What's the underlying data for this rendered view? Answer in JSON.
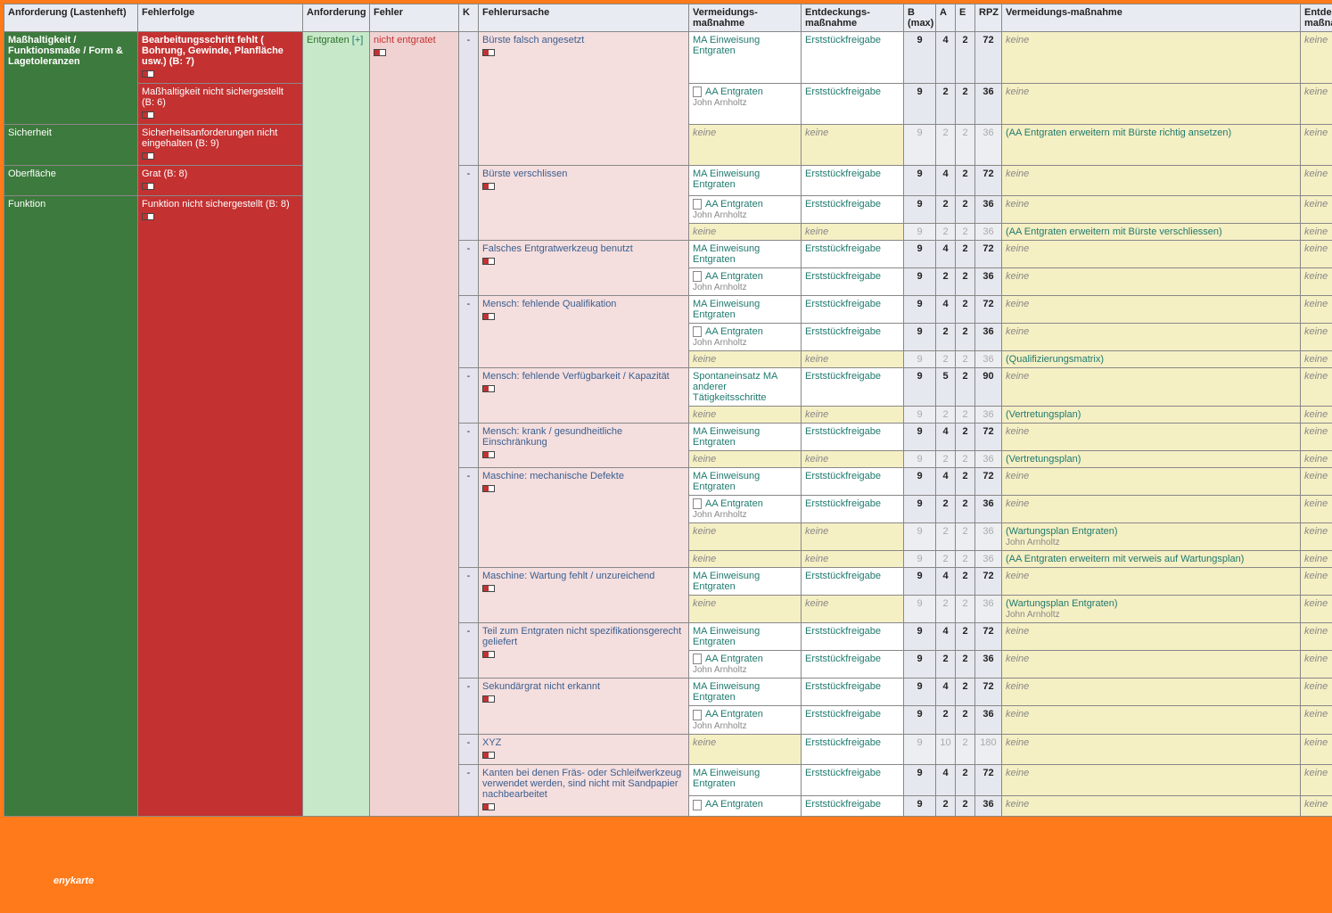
{
  "colors": {
    "frame": "#ff7a1a",
    "green": "#3d7a3d",
    "red": "#c43131",
    "mint": "#c7e9c9",
    "pink": "#f1d2d2",
    "rose": "#f5dede",
    "lav": "#e5e3ee",
    "yel": "#f5efc4",
    "teal": "#1e7a6e",
    "num": "#e6e8ef",
    "header": "#e8ecf2"
  },
  "headers": {
    "anf1": "Anforderung (Lastenheft)",
    "ff": "Fehlerfolge",
    "anf2": "Anforderung",
    "fehler": "Fehler",
    "k": "K",
    "fu": "Fehlerursache",
    "vm": "Vermeidungs-maßnahme",
    "em": "Entdeckungs-maßnahme",
    "b": "B (max)",
    "a": "A",
    "e": "E",
    "rpz": "RPZ",
    "vm2": "Vermeidungs-maßnahme",
    "em2": "Entdeckungs-maßnahme"
  },
  "anf1": [
    "Maßhaltigkeit / Funktionsmaße / Form & Lagetoleranzen",
    "",
    "Sicherheit",
    "Oberfläche",
    "Funktion"
  ],
  "ff": [
    "Bearbeitungsschritt fehlt ( Bohrung, Gewinde, Planfläche usw.) (B: 7)",
    "Maßhaltigkeit nicht sichergestellt (B: 6)",
    "Sicherheitsanforderungen nicht eingehalten (B: 9)",
    "Grat (B: 8)",
    "Funktion nicht sichergestellt (B: 8)"
  ],
  "anf2": {
    "label": "Entgraten",
    "plus": "[+]"
  },
  "fehler": "nicht entgratet",
  "brand": "enykarte",
  "common": {
    "ma": "MA Einweisung Entgraten",
    "aa": "AA Entgraten",
    "john": "John Arnholtz",
    "est": "Erststückfreigabe",
    "keine": "keine",
    "spont": "Spontaneinsatz MA anderer Tätigkeitsschritte"
  },
  "vm2": {
    "r3": "(AA Entgraten erweitern mit Bürste richtig ansetzen)",
    "r6": "(AA Entgraten erweitern mit Bürste verschliessen)",
    "r12": "(Qualifizierungsmatrix)",
    "r14": "(Vertretungsplan)",
    "r16": "(Vertretungsplan)",
    "r19": "(Wartungsplan Entgraten)",
    "r20": "(AA Entgraten erweitern mit verweis auf Wartungsplan)",
    "r22": "(Wartungsplan Entgraten)"
  },
  "causes": {
    "c1": "Bürste falsch angesetzt",
    "c2": "Bürste verschlissen",
    "c3": "Falsches Entgratwerkzeug benutzt",
    "c4": "Mensch: fehlende Qualifikation",
    "c5": "Mensch: fehlende Verfügbarkeit / Kapazität",
    "c6": "Mensch: krank / gesundheitliche Einschränkung",
    "c7": "Maschine: mechanische Defekte",
    "c8": "Maschine: Wartung fehlt / unzureichend",
    "c9": "Teil zum Entgraten nicht spezifikationsgerecht geliefert",
    "c10": "Sekundärgrat nicht erkannt",
    "c11": "XYZ",
    "c12": "Kanten bei denen Fräs- oder Schleifwerkzeug verwendet werden, sind nicht mit Sandpapier nachbearbeitet"
  },
  "rows": [
    {
      "fu": "c1",
      "vm": "ma",
      "em": "est",
      "b": "9",
      "a": "4",
      "e": "2",
      "rpz": "72",
      "vm2k": "keine",
      "em2": "keine"
    },
    {
      "fu": "",
      "vm": "aa",
      "vmSub": "john",
      "em": "est",
      "b": "9",
      "a": "2",
      "e": "2",
      "rpz": "36",
      "vm2k": "keine",
      "em2": "keine"
    },
    {
      "fu": "",
      "vm": "keine",
      "em": "keine",
      "dim": true,
      "b": "9",
      "a": "2",
      "e": "2",
      "rpz": "36",
      "vm2": "r3",
      "em2": "keine"
    },
    {
      "fu": "c2",
      "vm": "ma",
      "em": "est",
      "b": "9",
      "a": "4",
      "e": "2",
      "rpz": "72",
      "vm2k": "keine",
      "em2": "keine"
    },
    {
      "fu": "",
      "vm": "aa",
      "vmSub": "john",
      "em": "est",
      "b": "9",
      "a": "2",
      "e": "2",
      "rpz": "36",
      "vm2k": "keine",
      "em2": "keine"
    },
    {
      "fu": "",
      "vm": "keine",
      "em": "keine",
      "dim": true,
      "b": "9",
      "a": "2",
      "e": "2",
      "rpz": "36",
      "vm2": "r6",
      "em2": "keine"
    },
    {
      "fu": "c3",
      "vm": "ma",
      "em": "est",
      "b": "9",
      "a": "4",
      "e": "2",
      "rpz": "72",
      "vm2k": "keine",
      "em2": "keine"
    },
    {
      "fu": "",
      "vm": "aa",
      "vmSub": "john",
      "em": "est",
      "b": "9",
      "a": "2",
      "e": "2",
      "rpz": "36",
      "vm2k": "keine",
      "em2": "keine"
    },
    {
      "fu": "c4",
      "vm": "ma",
      "em": "est",
      "b": "9",
      "a": "4",
      "e": "2",
      "rpz": "72",
      "vm2k": "keine",
      "em2": "keine"
    },
    {
      "fu": "",
      "vm": "aa",
      "vmSub": "john",
      "em": "est",
      "b": "9",
      "a": "2",
      "e": "2",
      "rpz": "36",
      "vm2k": "keine",
      "em2": "keine"
    },
    {
      "fu": "",
      "vm": "keine",
      "em": "keine",
      "dim": true,
      "b": "9",
      "a": "2",
      "e": "2",
      "rpz": "36",
      "vm2": "r12",
      "em2": "keine"
    },
    {
      "fu": "c5",
      "vm": "spont",
      "em": "est",
      "b": "9",
      "a": "5",
      "e": "2",
      "rpz": "90",
      "vm2k": "keine",
      "em2": "keine"
    },
    {
      "fu": "",
      "vm": "keine",
      "em": "keine",
      "dim": true,
      "b": "9",
      "a": "2",
      "e": "2",
      "rpz": "36",
      "vm2": "r14",
      "em2": "keine"
    },
    {
      "fu": "c6",
      "vm": "ma",
      "em": "est",
      "b": "9",
      "a": "4",
      "e": "2",
      "rpz": "72",
      "vm2k": "keine",
      "em2": "keine"
    },
    {
      "fu": "",
      "vm": "keine",
      "em": "keine",
      "dim": true,
      "b": "9",
      "a": "2",
      "e": "2",
      "rpz": "36",
      "vm2": "r16",
      "em2": "keine"
    },
    {
      "fu": "c7",
      "vm": "ma",
      "em": "est",
      "b": "9",
      "a": "4",
      "e": "2",
      "rpz": "72",
      "vm2k": "keine",
      "em2": "keine"
    },
    {
      "fu": "",
      "vm": "aa",
      "vmSub": "john",
      "em": "est",
      "b": "9",
      "a": "2",
      "e": "2",
      "rpz": "36",
      "vm2k": "keine",
      "em2": "keine"
    },
    {
      "fu": "",
      "vm": "keine",
      "em": "keine",
      "dim": true,
      "b": "9",
      "a": "2",
      "e": "2",
      "rpz": "36",
      "vm2": "r19",
      "vm2Sub": "john",
      "em2": "keine"
    },
    {
      "fu": "",
      "vm": "keine",
      "em": "keine",
      "dim": true,
      "b": "9",
      "a": "2",
      "e": "2",
      "rpz": "36",
      "vm2": "r20",
      "em2": "keine"
    },
    {
      "fu": "c8",
      "vm": "ma",
      "em": "est",
      "b": "9",
      "a": "4",
      "e": "2",
      "rpz": "72",
      "vm2k": "keine",
      "em2": "keine"
    },
    {
      "fu": "",
      "vm": "keine",
      "em": "keine",
      "dim": true,
      "b": "9",
      "a": "2",
      "e": "2",
      "rpz": "36",
      "vm2": "r22",
      "vm2Sub": "john",
      "em2": "keine"
    },
    {
      "fu": "c9",
      "vm": "ma",
      "em": "est",
      "b": "9",
      "a": "4",
      "e": "2",
      "rpz": "72",
      "vm2k": "keine",
      "em2": "keine"
    },
    {
      "fu": "",
      "vm": "aa",
      "vmSub": "john",
      "em": "est",
      "b": "9",
      "a": "2",
      "e": "2",
      "rpz": "36",
      "vm2k": "keine",
      "em2": "keine"
    },
    {
      "fu": "c10",
      "vm": "ma",
      "em": "est",
      "b": "9",
      "a": "4",
      "e": "2",
      "rpz": "72",
      "vm2k": "keine",
      "em2": "keine"
    },
    {
      "fu": "",
      "vm": "aa",
      "vmSub": "john",
      "em": "est",
      "b": "9",
      "a": "2",
      "e": "2",
      "rpz": "36",
      "vm2k": "keine",
      "em2": "keine"
    },
    {
      "fu": "c11",
      "vm": "keine",
      "em": "est",
      "dim": true,
      "b": "9",
      "a": "10",
      "e": "2",
      "rpz": "180",
      "vm2k": "keine",
      "em2": "keine"
    },
    {
      "fu": "c12",
      "vm": "ma",
      "em": "est",
      "b": "9",
      "a": "4",
      "e": "2",
      "rpz": "72",
      "vm2k": "keine",
      "em2": "keine"
    },
    {
      "fu": "",
      "vm": "aa",
      "em": "est",
      "b": "9",
      "a": "2",
      "e": "2",
      "rpz": "36",
      "vm2k": "keine",
      "em2": "keine"
    }
  ]
}
